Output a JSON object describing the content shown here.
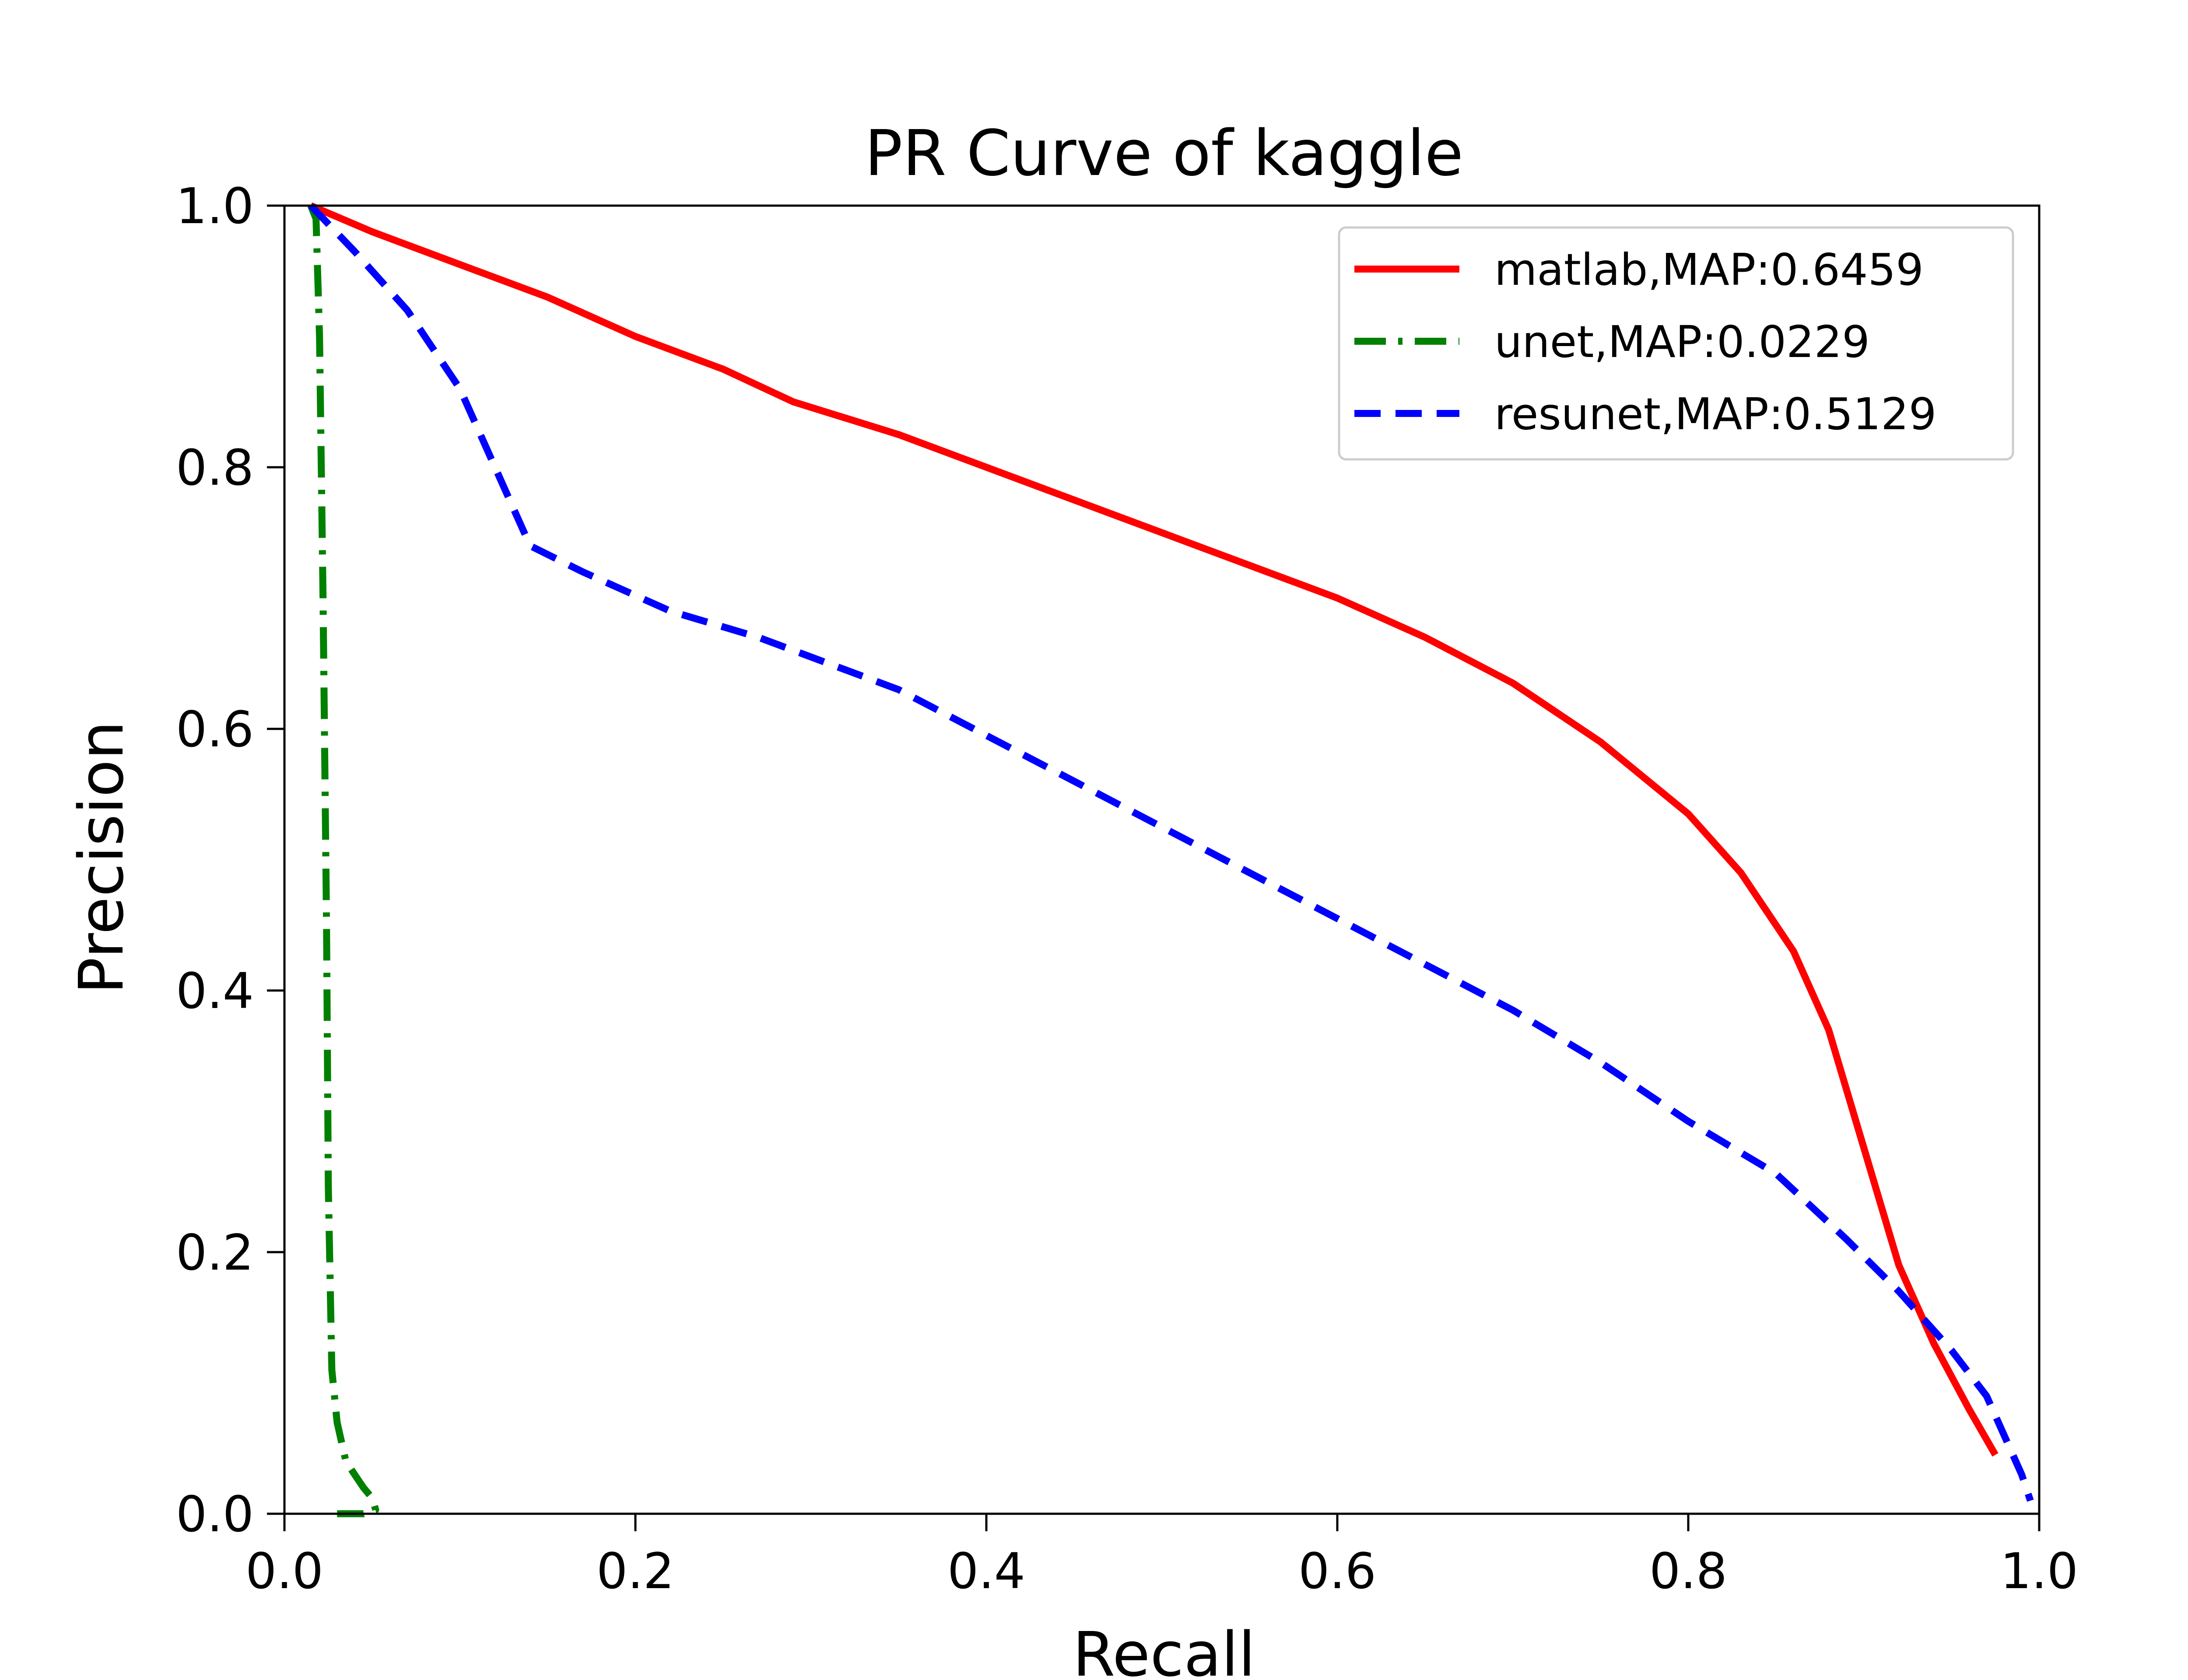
{
  "chart_data": {
    "type": "line",
    "title": "PR Curve of kaggle",
    "xlabel": "Recall",
    "ylabel": "Precision",
    "xlim": [
      0.0,
      1.0
    ],
    "ylim": [
      0.0,
      1.0
    ],
    "xticks": [
      "0.0",
      "0.2",
      "0.4",
      "0.6",
      "0.8",
      "1.0"
    ],
    "yticks": [
      "0.0",
      "0.2",
      "0.4",
      "0.6",
      "0.8",
      "1.0"
    ],
    "grid": false,
    "legend_position": "top-right",
    "series": [
      {
        "name": "matlab,MAP:0.6459",
        "color": "#ff0000",
        "style": "solid",
        "x": [
          0.015,
          0.05,
          0.1,
          0.15,
          0.2,
          0.25,
          0.29,
          0.35,
          0.4,
          0.45,
          0.5,
          0.55,
          0.6,
          0.65,
          0.7,
          0.75,
          0.8,
          0.83,
          0.86,
          0.88,
          0.9,
          0.92,
          0.94,
          0.96,
          0.975
        ],
        "y": [
          1.0,
          0.98,
          0.955,
          0.93,
          0.9,
          0.875,
          0.85,
          0.825,
          0.8,
          0.775,
          0.75,
          0.725,
          0.7,
          0.67,
          0.635,
          0.59,
          0.535,
          0.49,
          0.43,
          0.37,
          0.28,
          0.19,
          0.13,
          0.08,
          0.045
        ]
      },
      {
        "name": "unet,MAP:0.0229",
        "color": "#008000",
        "style": "dashdot",
        "x": [
          0.015,
          0.018,
          0.02,
          0.022,
          0.024,
          0.025,
          0.027,
          0.03,
          0.035,
          0.04,
          0.045,
          0.05,
          0.052,
          0.045,
          0.04,
          0.035,
          0.03
        ],
        "y": [
          1.0,
          0.99,
          0.9,
          0.7,
          0.45,
          0.25,
          0.11,
          0.07,
          0.04,
          0.03,
          0.02,
          0.012,
          0.003,
          0.0,
          0.0,
          0.0,
          0.0
        ]
      },
      {
        "name": "resunet,MAP:0.5129",
        "color": "#0000ff",
        "style": "dashed",
        "x": [
          0.015,
          0.04,
          0.07,
          0.1,
          0.14,
          0.17,
          0.22,
          0.27,
          0.31,
          0.35,
          0.4,
          0.45,
          0.5,
          0.55,
          0.6,
          0.65,
          0.7,
          0.75,
          0.8,
          0.85,
          0.89,
          0.92,
          0.95,
          0.97,
          0.98,
          0.99,
          0.995
        ],
        "y": [
          1.0,
          0.965,
          0.92,
          0.86,
          0.74,
          0.72,
          0.69,
          0.67,
          0.65,
          0.63,
          0.595,
          0.56,
          0.525,
          0.49,
          0.455,
          0.42,
          0.385,
          0.345,
          0.3,
          0.26,
          0.21,
          0.17,
          0.125,
          0.09,
          0.06,
          0.03,
          0.01
        ]
      }
    ]
  }
}
